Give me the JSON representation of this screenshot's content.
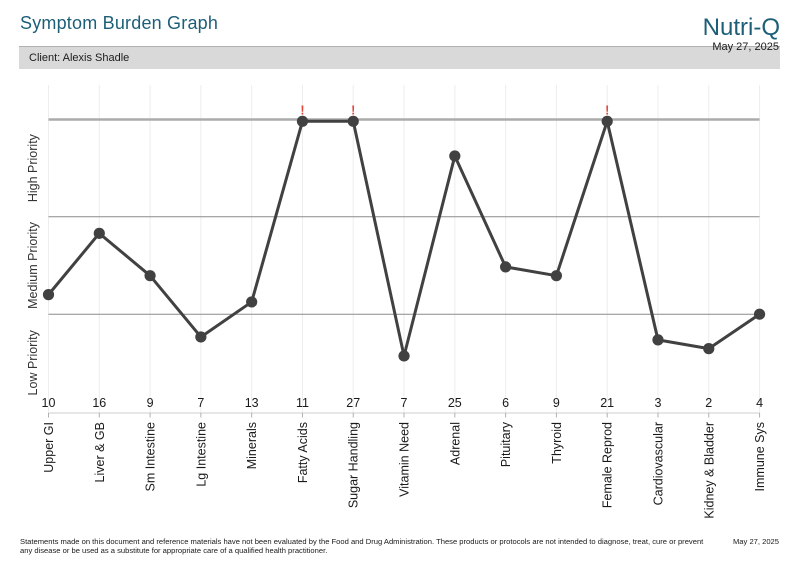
{
  "header": {
    "title": "Symptom Burden Graph",
    "brand": "Nutri-Q",
    "date": "May 27, 2025",
    "client_label": "Client: Alexis Shadle"
  },
  "footer": {
    "disclaimer_line1": "Statements made on this document and reference materials have not been evaluated by the Food and Drug Administration. These products or protocols are not intended to diagnose, treat, cure or prevent",
    "disclaimer_line2": "any disease or be used as a substitute for appropriate care of a qualified health practitioner.",
    "date": "May 27, 2025"
  },
  "colors": {
    "brand_teal": "#1e5f78",
    "series_line": "#414141",
    "point_fill": "#414141",
    "over_max_alert_red": "#e2493b",
    "cap_line_gray": "#ababab",
    "band_line_gray": "#8c8c8c",
    "gridline_gray": "#ededed",
    "baseline_gray": "#cfcfcf",
    "tick_gray": "#b0b0b0",
    "text_dark": "#1a1a1a",
    "axis_label_gray": "#333333",
    "client_bar_bg": "#d9d9d9"
  },
  "chart_data": {
    "type": "line",
    "title": "Symptom Burden Graph",
    "categories": [
      "Upper GI",
      "Liver & GB",
      "Sm Intestine",
      "Lg Intestine",
      "Minerals",
      "Fatty Acids",
      "Sugar Handling",
      "Vitamin Need",
      "Adrenal",
      "Pituitary",
      "Thyroid",
      "Female Reprod",
      "Cardiovascular",
      "Kidney & Bladder",
      "Immune Sys"
    ],
    "values": [
      10,
      16,
      9,
      7,
      13,
      11,
      27,
      7,
      25,
      6,
      9,
      21,
      3,
      2,
      4
    ],
    "display_level_pct": [
      40,
      61,
      46.5,
      25.5,
      37.5,
      100,
      100,
      19,
      87.5,
      49.5,
      46.5,
      100,
      24.5,
      21.5,
      33.3
    ],
    "over_max_flags": [
      false,
      false,
      false,
      false,
      false,
      true,
      true,
      false,
      false,
      false,
      false,
      true,
      false,
      false,
      false
    ],
    "over_max_marker": "!",
    "y_axis_bands_top_to_bottom": [
      "High Priority",
      "Medium Priority",
      "Low Priority"
    ],
    "band_boundaries_pct": [
      33.3,
      66.7,
      100
    ],
    "ylim_pct": [
      0,
      100
    ],
    "grid": "vertical-light, horizontal-band-lines",
    "legend": "none"
  }
}
